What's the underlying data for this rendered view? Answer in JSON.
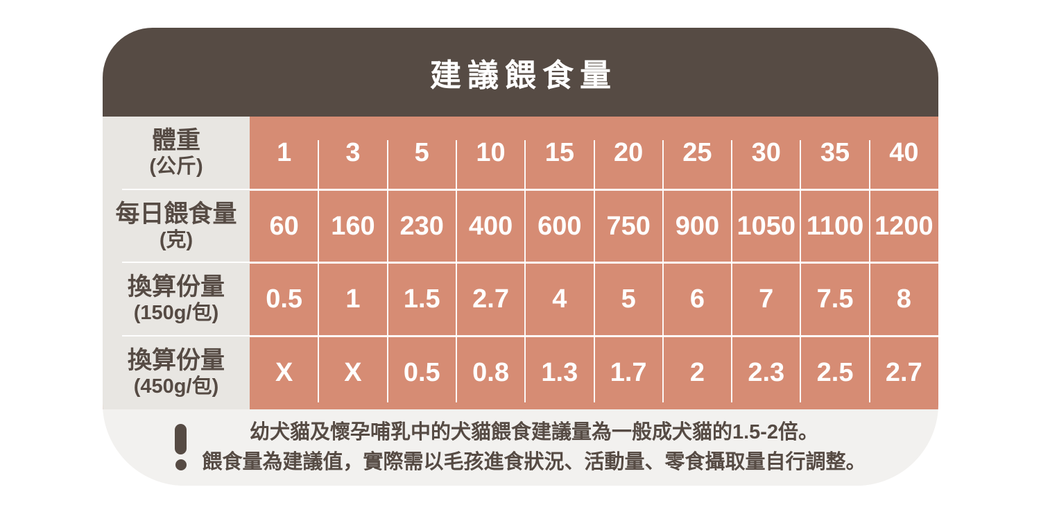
{
  "title": "建議餵食量",
  "colors": {
    "header_bg": "#564B44",
    "table_bg": "#D68C74",
    "label_column_bg": "#E8E6E2",
    "card_bg": "#F2F1EF",
    "text_dark": "#564B44",
    "text_light": "#FFFFFF"
  },
  "table": {
    "rows": [
      {
        "label": "體重",
        "sublabel": "(公斤)",
        "values": [
          "1",
          "3",
          "5",
          "10",
          "15",
          "20",
          "25",
          "30",
          "35",
          "40"
        ]
      },
      {
        "label": "每日餵食量",
        "sublabel": "(克)",
        "values": [
          "60",
          "160",
          "230",
          "400",
          "600",
          "750",
          "900",
          "1050",
          "1100",
          "1200"
        ]
      },
      {
        "label": "換算份量",
        "sublabel": "(150g/包)",
        "values": [
          "0.5",
          "1",
          "1.5",
          "2.7",
          "4",
          "5",
          "6",
          "7",
          "7.5",
          "8"
        ]
      },
      {
        "label": "換算份量",
        "sublabel": "(450g/包)",
        "values": [
          "X",
          "X",
          "0.5",
          "0.8",
          "1.3",
          "1.7",
          "2",
          "2.3",
          "2.5",
          "2.7"
        ]
      }
    ]
  },
  "note": {
    "icon": "exclamation-mark",
    "line1": "幼犬貓及懷孕哺乳中的犬貓餵食建議量為一般成犬貓的1.5-2倍。",
    "line2": "餵食量為建議值，實際需以毛孩進食狀況、活動量、零食攝取量自行調整。"
  },
  "chart_data": {
    "type": "table",
    "title": "建議餵食量",
    "columns_label": "體重(公斤)",
    "columns": [
      1,
      3,
      5,
      10,
      15,
      20,
      25,
      30,
      35,
      40
    ],
    "series": [
      {
        "name": "每日餵食量(克)",
        "values": [
          60,
          160,
          230,
          400,
          600,
          750,
          900,
          1050,
          1100,
          1200
        ]
      },
      {
        "name": "換算份量(150g/包)",
        "values": [
          0.5,
          1,
          1.5,
          2.7,
          4,
          5,
          6,
          7,
          7.5,
          8
        ]
      },
      {
        "name": "換算份量(450g/包)",
        "values": [
          null,
          null,
          0.5,
          0.8,
          1.3,
          1.7,
          2,
          2.3,
          2.5,
          2.7
        ]
      }
    ],
    "notes": [
      "幼犬貓及懷孕哺乳中的犬貓餵食建議量為一般成犬貓的1.5-2倍。",
      "餵食量為建議值，實際需以毛孩進食狀況、活動量、零食攝取量自行調整。"
    ]
  }
}
